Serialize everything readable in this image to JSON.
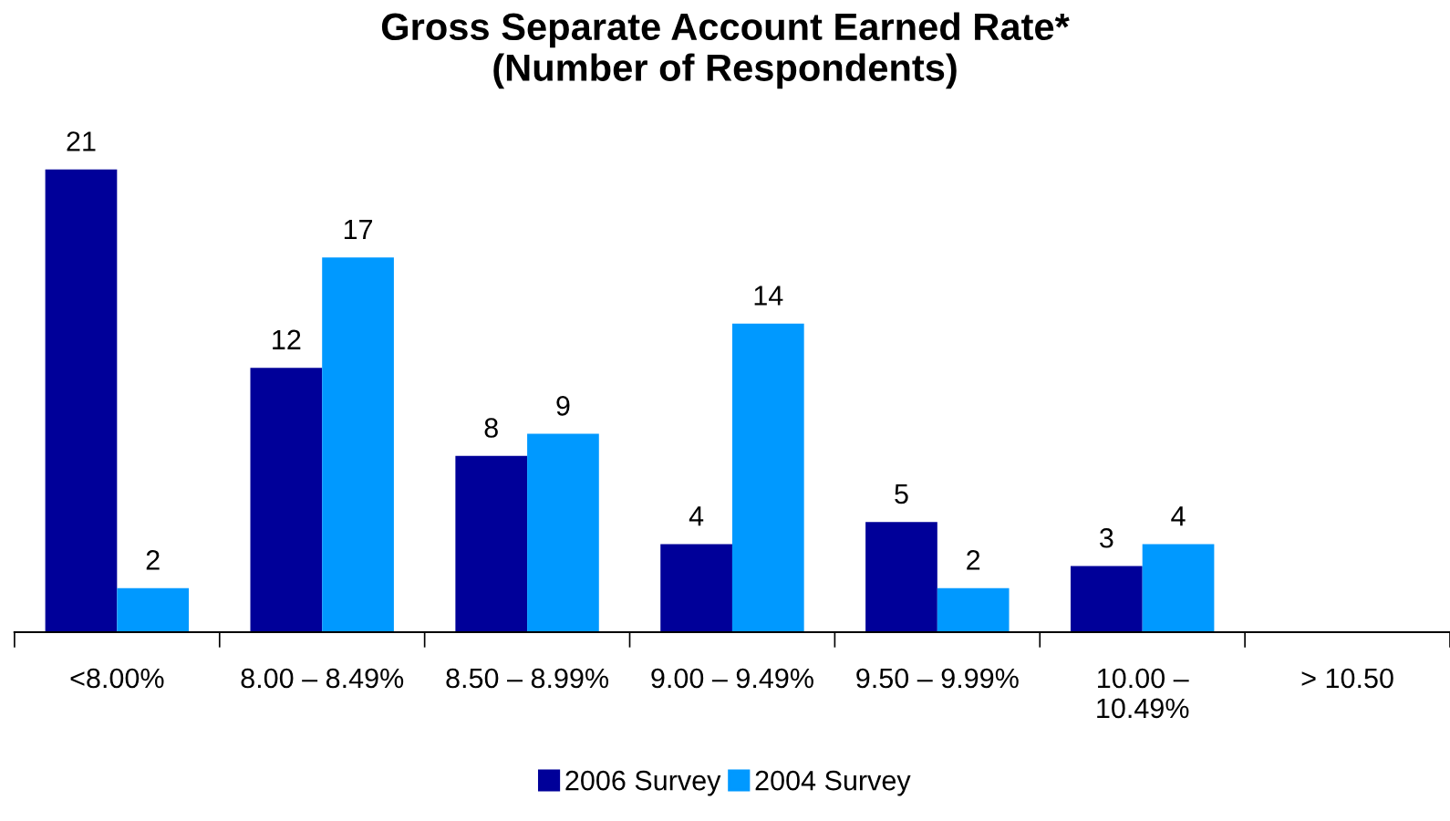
{
  "chart_data": {
    "type": "bar",
    "title": "Gross Separate Account Earned Rate*\n(Number of Respondents)",
    "categories": [
      "<8.00%",
      "8.00 – 8.49%",
      "8.50 – 8.99%",
      "9.00 – 9.49%",
      "9.50 – 9.99%",
      "10.00 – 10.49%",
      "> 10.50"
    ],
    "series": [
      {
        "name": "2006 Survey",
        "color": "#000099",
        "values": [
          21,
          12,
          8,
          4,
          5,
          3,
          null
        ]
      },
      {
        "name": "2004 Survey",
        "color": "#0099ff",
        "values": [
          2,
          17,
          9,
          14,
          2,
          4,
          null
        ]
      }
    ],
    "data_labels": true,
    "legend": "bottom",
    "grid": false,
    "tick_labels": "x"
  }
}
